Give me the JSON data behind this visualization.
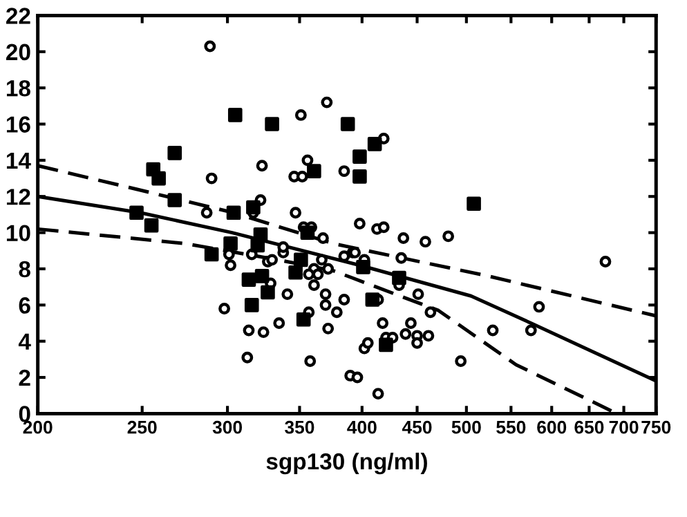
{
  "chart_data": {
    "type": "scatter",
    "xlabel": "sgp130 (ng/ml)",
    "log": "x",
    "grid": false,
    "xlim": [
      200,
      750
    ],
    "xticks": [
      200,
      250,
      300,
      350,
      400,
      450,
      500,
      550,
      600,
      650,
      700,
      750
    ],
    "ylim": [
      0,
      22
    ],
    "yticks": [
      0,
      2,
      4,
      6,
      8,
      10,
      12,
      14,
      16,
      18,
      20,
      22
    ],
    "series": [
      {
        "marker": "circle",
        "color": "#000000",
        "x": [
          289,
          290,
          287,
          323,
          322,
          317,
          351,
          371,
          356,
          346,
          352,
          347,
          353,
          359,
          368,
          385,
          392,
          385,
          301,
          302,
          316,
          327,
          330,
          338,
          338,
          367,
          372,
          361,
          357,
          364,
          419,
          398,
          413,
          419,
          437,
          458,
          481,
          673,
          394,
          402,
          435,
          298,
          314,
          313,
          324,
          329,
          335,
          341,
          361,
          370,
          370,
          379,
          357,
          385,
          372,
          358,
          390,
          396,
          414,
          418,
          402,
          405,
          421,
          427,
          444,
          439,
          450,
          450,
          461,
          451,
          463,
          433,
          414,
          494,
          529,
          574,
          584
        ],
        "values": [
          20.3,
          13.0,
          11.1,
          13.7,
          11.8,
          11.1,
          16.5,
          17.2,
          14.0,
          13.1,
          13.1,
          11.1,
          10.3,
          10.3,
          9.7,
          13.4,
          8.9,
          8.7,
          8.8,
          8.2,
          8.8,
          8.4,
          8.5,
          8.9,
          9.2,
          8.5,
          8.0,
          8.0,
          7.7,
          7.7,
          15.2,
          10.5,
          10.2,
          10.3,
          9.7,
          9.5,
          9.8,
          8.4,
          8.9,
          8.5,
          8.6,
          5.8,
          4.6,
          3.1,
          4.5,
          7.2,
          5.0,
          6.6,
          7.1,
          6.6,
          6.0,
          5.6,
          5.6,
          6.3,
          4.7,
          2.9,
          2.1,
          2.0,
          6.3,
          5.0,
          3.6,
          3.9,
          4.2,
          4.2,
          5.0,
          4.4,
          4.3,
          3.9,
          4.3,
          6.6,
          5.6,
          7.1,
          1.1,
          2.9,
          4.6,
          4.6,
          5.9
        ]
      },
      {
        "marker": "square",
        "color": "#000000",
        "x": [
          305,
          330,
          388,
          398,
          398,
          361,
          268,
          256,
          259,
          268,
          247,
          255,
          304,
          317,
          322,
          302,
          320,
          290,
          351,
          356,
          347,
          411,
          508,
          401,
          314,
          323,
          327,
          316,
          353,
          433,
          409,
          421
        ],
        "values": [
          16.5,
          16.0,
          16.0,
          14.2,
          13.1,
          13.4,
          14.4,
          13.5,
          13.0,
          11.8,
          11.1,
          10.4,
          11.1,
          11.4,
          9.9,
          9.4,
          9.3,
          8.8,
          8.5,
          10.0,
          7.8,
          14.9,
          11.6,
          8.1,
          7.4,
          7.6,
          6.7,
          6.0,
          5.2,
          7.5,
          6.3,
          3.8
        ]
      },
      {
        "type": "line",
        "line_style": "solid",
        "color": "#000000",
        "x": [
          200,
          249,
          303,
          398,
          505,
          574,
          750
        ],
        "values": [
          12.0,
          11.1,
          10.0,
          8.2,
          6.5,
          5.0,
          1.8
        ]
      },
      {
        "type": "line",
        "line_style": "dashed",
        "color": "#000000",
        "x": [
          200,
          247,
          304,
          376,
          524,
          750
        ],
        "values": [
          13.7,
          12.4,
          11.1,
          9.4,
          7.6,
          5.4
        ]
      },
      {
        "type": "line",
        "line_style": "dashed",
        "color": "#000000",
        "x": [
          200,
          274,
          334,
          376,
          471,
          556,
          690
        ],
        "values": [
          10.2,
          9.4,
          8.5,
          7.9,
          5.7,
          2.7,
          0
        ]
      }
    ]
  }
}
